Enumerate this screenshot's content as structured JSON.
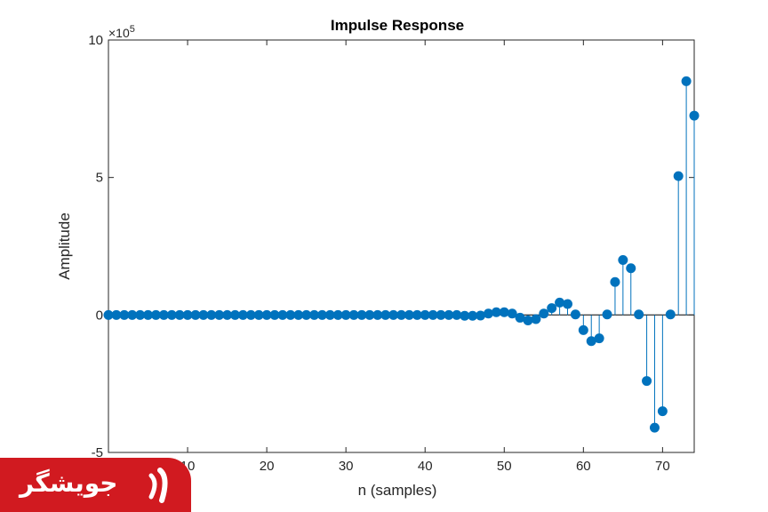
{
  "chart_data": {
    "type": "stem",
    "title": "Impulse Response",
    "xlabel": "n (samples)",
    "ylabel": "Amplitude",
    "y_exponent_label": "×10",
    "y_exponent_power": "5",
    "xlim": [
      0,
      74
    ],
    "ylim": [
      -5,
      10
    ],
    "xticks": [
      10,
      20,
      30,
      40,
      50,
      60,
      70
    ],
    "yticks": [
      -5,
      0,
      5,
      10
    ],
    "color": "#0072BD",
    "n": [
      0,
      1,
      2,
      3,
      4,
      5,
      6,
      7,
      8,
      9,
      10,
      11,
      12,
      13,
      14,
      15,
      16,
      17,
      18,
      19,
      20,
      21,
      22,
      23,
      24,
      25,
      26,
      27,
      28,
      29,
      30,
      31,
      32,
      33,
      34,
      35,
      36,
      37,
      38,
      39,
      40,
      41,
      42,
      43,
      44,
      45,
      46,
      47,
      48,
      49,
      50,
      51,
      52,
      53,
      54,
      55,
      56,
      57,
      58,
      59,
      60,
      61,
      62,
      63,
      64,
      65,
      66,
      67,
      68,
      69,
      70,
      71,
      72,
      73,
      74
    ],
    "values": [
      0,
      0,
      0,
      0,
      0,
      0,
      0,
      0,
      0,
      0,
      0,
      0,
      0,
      0,
      0,
      0,
      0,
      0,
      0,
      0,
      0,
      0,
      0,
      0,
      0,
      0,
      0,
      0,
      0,
      0,
      0,
      0,
      0,
      0,
      0,
      0,
      0,
      0,
      0,
      0,
      0,
      0,
      0,
      0,
      0,
      -0.03,
      -0.03,
      -0.02,
      0.05,
      0.1,
      0.1,
      0.05,
      -0.1,
      -0.2,
      -0.15,
      0.05,
      0.25,
      0.45,
      0.4,
      0.02,
      -0.55,
      -0.95,
      -0.85,
      0.02,
      1.2,
      2.0,
      1.7,
      0.02,
      -2.4,
      -4.1,
      -3.5,
      0.02,
      5.05,
      8.5,
      7.25
    ]
  },
  "watermark": {
    "text": "جویشگر"
  }
}
